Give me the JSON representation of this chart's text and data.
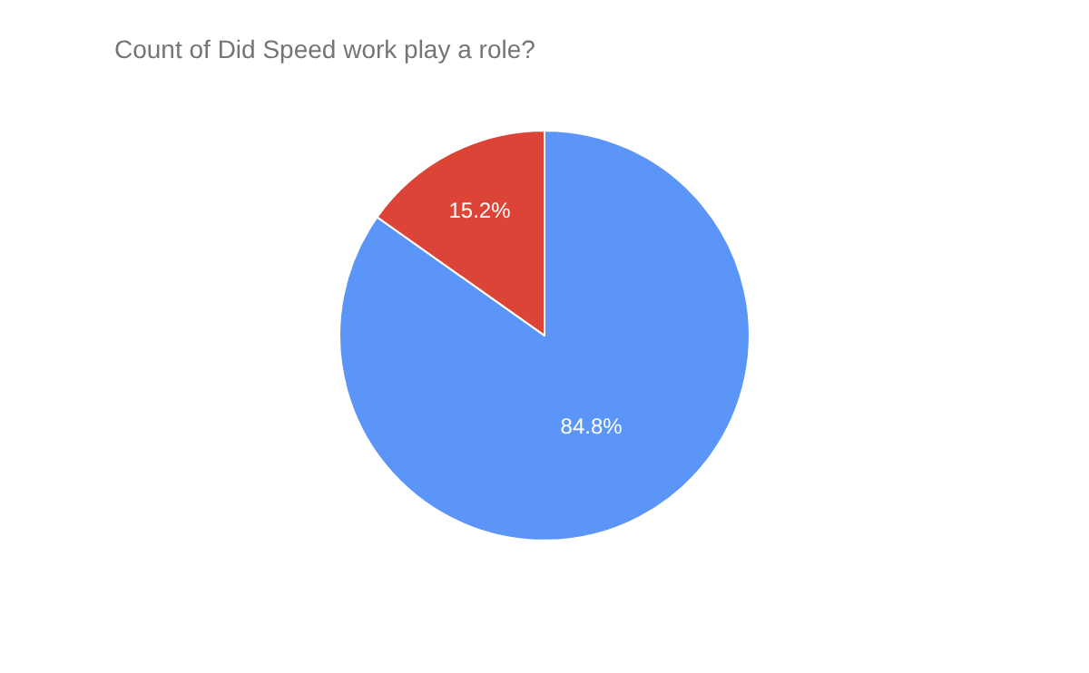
{
  "chart_data": {
    "type": "pie",
    "title": "Count of Did Speed work play a role?",
    "categories": [
      null,
      null
    ],
    "values": [
      84.8,
      15.2
    ],
    "colors": [
      "#5b95f7",
      "#db4437"
    ],
    "value_labels": [
      "84.8%",
      "15.2%"
    ],
    "legend": false
  }
}
